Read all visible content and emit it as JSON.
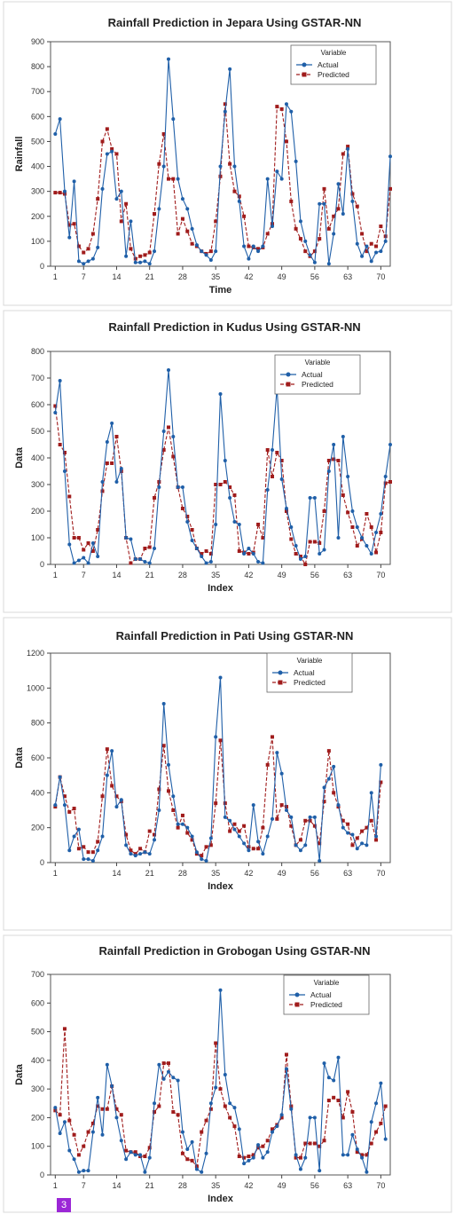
{
  "chart_data": [
    {
      "type": "line",
      "title": "Rainfall Prediction in Jepara Using GSTAR-NN",
      "xlabel": "Time",
      "ylabel": "Rainfall",
      "ylim": [
        0,
        900
      ],
      "yticks": [
        0,
        100,
        200,
        300,
        400,
        500,
        600,
        700,
        800,
        900
      ],
      "xticks": [
        1,
        7,
        14,
        21,
        28,
        35,
        42,
        49,
        56,
        63,
        70
      ],
      "legend_title": "Variable",
      "legend_position": "top-right",
      "x_start": 1,
      "series": [
        {
          "name": "Actual",
          "color": "#1f5fa8",
          "style": "solid",
          "marker": "circle",
          "values": [
            530,
            590,
            300,
            115,
            340,
            20,
            10,
            20,
            30,
            75,
            310,
            450,
            460,
            270,
            300,
            40,
            180,
            15,
            15,
            20,
            10,
            60,
            230,
            400,
            830,
            590,
            350,
            270,
            230,
            150,
            85,
            60,
            45,
            25,
            60,
            400,
            620,
            790,
            400,
            260,
            80,
            30,
            80,
            60,
            80,
            350,
            160,
            380,
            350,
            650,
            620,
            420,
            180,
            100,
            45,
            15,
            250,
            250,
            10,
            130,
            330,
            210,
            470,
            260,
            90,
            40,
            80,
            20,
            55,
            60,
            100,
            440
          ]
        },
        {
          "name": "Predicted",
          "color": "#a01c1c",
          "style": "dashed",
          "marker": "square",
          "values": [
            295,
            295,
            290,
            165,
            170,
            80,
            55,
            70,
            130,
            270,
            500,
            550,
            470,
            450,
            180,
            250,
            70,
            30,
            40,
            45,
            55,
            210,
            410,
            530,
            350,
            350,
            130,
            190,
            140,
            90,
            80,
            60,
            50,
            60,
            180,
            360,
            650,
            410,
            300,
            280,
            200,
            80,
            75,
            70,
            75,
            130,
            170,
            640,
            630,
            500,
            260,
            150,
            110,
            60,
            40,
            60,
            110,
            310,
            150,
            200,
            230,
            450,
            480,
            290,
            240,
            130,
            60,
            90,
            80,
            160,
            120,
            310
          ]
        }
      ]
    },
    {
      "type": "line",
      "title": "Rainfall Prediction in Kudus Using GSTAR-NN",
      "xlabel": "Index",
      "ylabel": "Data",
      "ylim": [
        0,
        800
      ],
      "yticks": [
        0,
        100,
        200,
        300,
        400,
        500,
        600,
        700,
        800
      ],
      "xticks": [
        1,
        7,
        14,
        21,
        28,
        35,
        42,
        49,
        56,
        63,
        70
      ],
      "legend_title": "Variable",
      "legend_position": "top-right",
      "x_start": 1,
      "series": [
        {
          "name": "Actual",
          "color": "#1f5fa8",
          "style": "solid",
          "marker": "circle",
          "values": [
            570,
            690,
            350,
            75,
            5,
            15,
            25,
            5,
            80,
            30,
            310,
            460,
            530,
            310,
            360,
            100,
            95,
            20,
            20,
            10,
            5,
            60,
            290,
            500,
            730,
            480,
            290,
            290,
            160,
            90,
            60,
            30,
            5,
            10,
            150,
            640,
            390,
            250,
            160,
            150,
            40,
            60,
            40,
            10,
            5,
            280,
            430,
            665,
            320,
            210,
            140,
            70,
            20,
            30,
            250,
            250,
            40,
            55,
            350,
            450,
            100,
            480,
            330,
            200,
            140,
            100,
            70,
            40,
            120,
            190,
            330,
            450
          ]
        },
        {
          "name": "Predicted",
          "color": "#a01c1c",
          "style": "dashed",
          "marker": "square",
          "values": [
            595,
            450,
            420,
            255,
            100,
            100,
            55,
            80,
            50,
            130,
            275,
            380,
            380,
            480,
            350,
            100,
            5,
            20,
            20,
            60,
            65,
            250,
            310,
            430,
            515,
            405,
            290,
            210,
            180,
            130,
            60,
            40,
            50,
            40,
            300,
            300,
            310,
            290,
            260,
            50,
            45,
            40,
            45,
            150,
            100,
            430,
            330,
            420,
            390,
            200,
            95,
            40,
            30,
            0,
            85,
            85,
            80,
            200,
            390,
            395,
            390,
            260,
            195,
            140,
            70,
            95,
            190,
            140,
            45,
            120,
            305,
            310
          ]
        }
      ]
    },
    {
      "type": "line",
      "title": "Rainfall Prediction in Pati Using GSTAR-NN",
      "xlabel": "Index",
      "ylabel": "Data",
      "ylim": [
        0,
        1200
      ],
      "yticks": [
        0,
        200,
        400,
        600,
        800,
        1000,
        1200
      ],
      "xticks": [
        1,
        14,
        21,
        28,
        35,
        42,
        49,
        56,
        63,
        70
      ],
      "legend_title": "Variable",
      "legend_position": "top-right",
      "x_start": 1,
      "series": [
        {
          "name": "Actual",
          "color": "#1f5fa8",
          "style": "solid",
          "marker": "circle",
          "values": [
            330,
            490,
            330,
            70,
            150,
            190,
            20,
            20,
            10,
            70,
            150,
            500,
            640,
            320,
            360,
            100,
            50,
            40,
            50,
            60,
            50,
            130,
            300,
            910,
            560,
            380,
            220,
            220,
            200,
            150,
            60,
            20,
            10,
            140,
            720,
            1060,
            260,
            240,
            190,
            150,
            110,
            70,
            330,
            120,
            50,
            150,
            250,
            630,
            510,
            300,
            260,
            100,
            70,
            100,
            260,
            260,
            10,
            430,
            480,
            550,
            330,
            200,
            170,
            160,
            80,
            110,
            100,
            400,
            150,
            560
          ]
        },
        {
          "name": "Predicted",
          "color": "#a01c1c",
          "style": "dashed",
          "marker": "square",
          "values": [
            320,
            490,
            380,
            290,
            310,
            80,
            90,
            60,
            60,
            120,
            380,
            650,
            440,
            380,
            350,
            160,
            70,
            50,
            80,
            60,
            180,
            160,
            420,
            670,
            410,
            300,
            200,
            270,
            170,
            130,
            50,
            40,
            90,
            100,
            340,
            700,
            340,
            180,
            220,
            180,
            210,
            90,
            80,
            80,
            200,
            560,
            720,
            250,
            330,
            320,
            210,
            100,
            130,
            240,
            240,
            210,
            110,
            350,
            640,
            400,
            320,
            240,
            220,
            100,
            140,
            180,
            200,
            240,
            130,
            460
          ]
        }
      ]
    },
    {
      "type": "line",
      "title": "Rainfall Prediction in Grobogan Using GSTAR-NN",
      "xlabel": "Index",
      "ylabel": "Data",
      "ylim": [
        0,
        700
      ],
      "yticks": [
        0,
        100,
        200,
        300,
        400,
        500,
        600,
        700
      ],
      "xticks": [
        1,
        7,
        14,
        21,
        28,
        35,
        42,
        49,
        56,
        63,
        70
      ],
      "legend_title": "Variable",
      "legend_position": "top-right",
      "x_start": 1,
      "series": [
        {
          "name": "Actual",
          "color": "#1f5fa8",
          "style": "solid",
          "marker": "circle",
          "values": [
            235,
            145,
            185,
            85,
            55,
            10,
            15,
            15,
            150,
            270,
            140,
            385,
            310,
            200,
            120,
            55,
            80,
            70,
            70,
            10,
            60,
            250,
            385,
            335,
            360,
            340,
            330,
            150,
            90,
            115,
            20,
            10,
            75,
            250,
            305,
            645,
            350,
            250,
            235,
            160,
            40,
            50,
            60,
            105,
            60,
            80,
            150,
            170,
            210,
            370,
            230,
            70,
            20,
            60,
            200,
            200,
            15,
            390,
            340,
            330,
            410,
            70,
            70,
            140,
            90,
            60,
            10,
            185,
            250,
            320,
            125
          ]
        },
        {
          "name": "Predicted",
          "color": "#a01c1c",
          "style": "dashed",
          "marker": "square",
          "values": [
            225,
            210,
            510,
            190,
            140,
            70,
            100,
            150,
            180,
            240,
            230,
            230,
            310,
            230,
            210,
            85,
            80,
            80,
            65,
            65,
            95,
            220,
            240,
            390,
            390,
            220,
            210,
            75,
            55,
            50,
            30,
            150,
            190,
            230,
            460,
            300,
            240,
            200,
            170,
            65,
            60,
            65,
            70,
            95,
            100,
            120,
            160,
            175,
            200,
            420,
            240,
            60,
            60,
            110,
            110,
            110,
            100,
            120,
            260,
            270,
            260,
            200,
            290,
            220,
            80,
            70,
            70,
            110,
            150,
            180,
            240
          ]
        }
      ]
    }
  ],
  "badge": {
    "label": "3"
  }
}
